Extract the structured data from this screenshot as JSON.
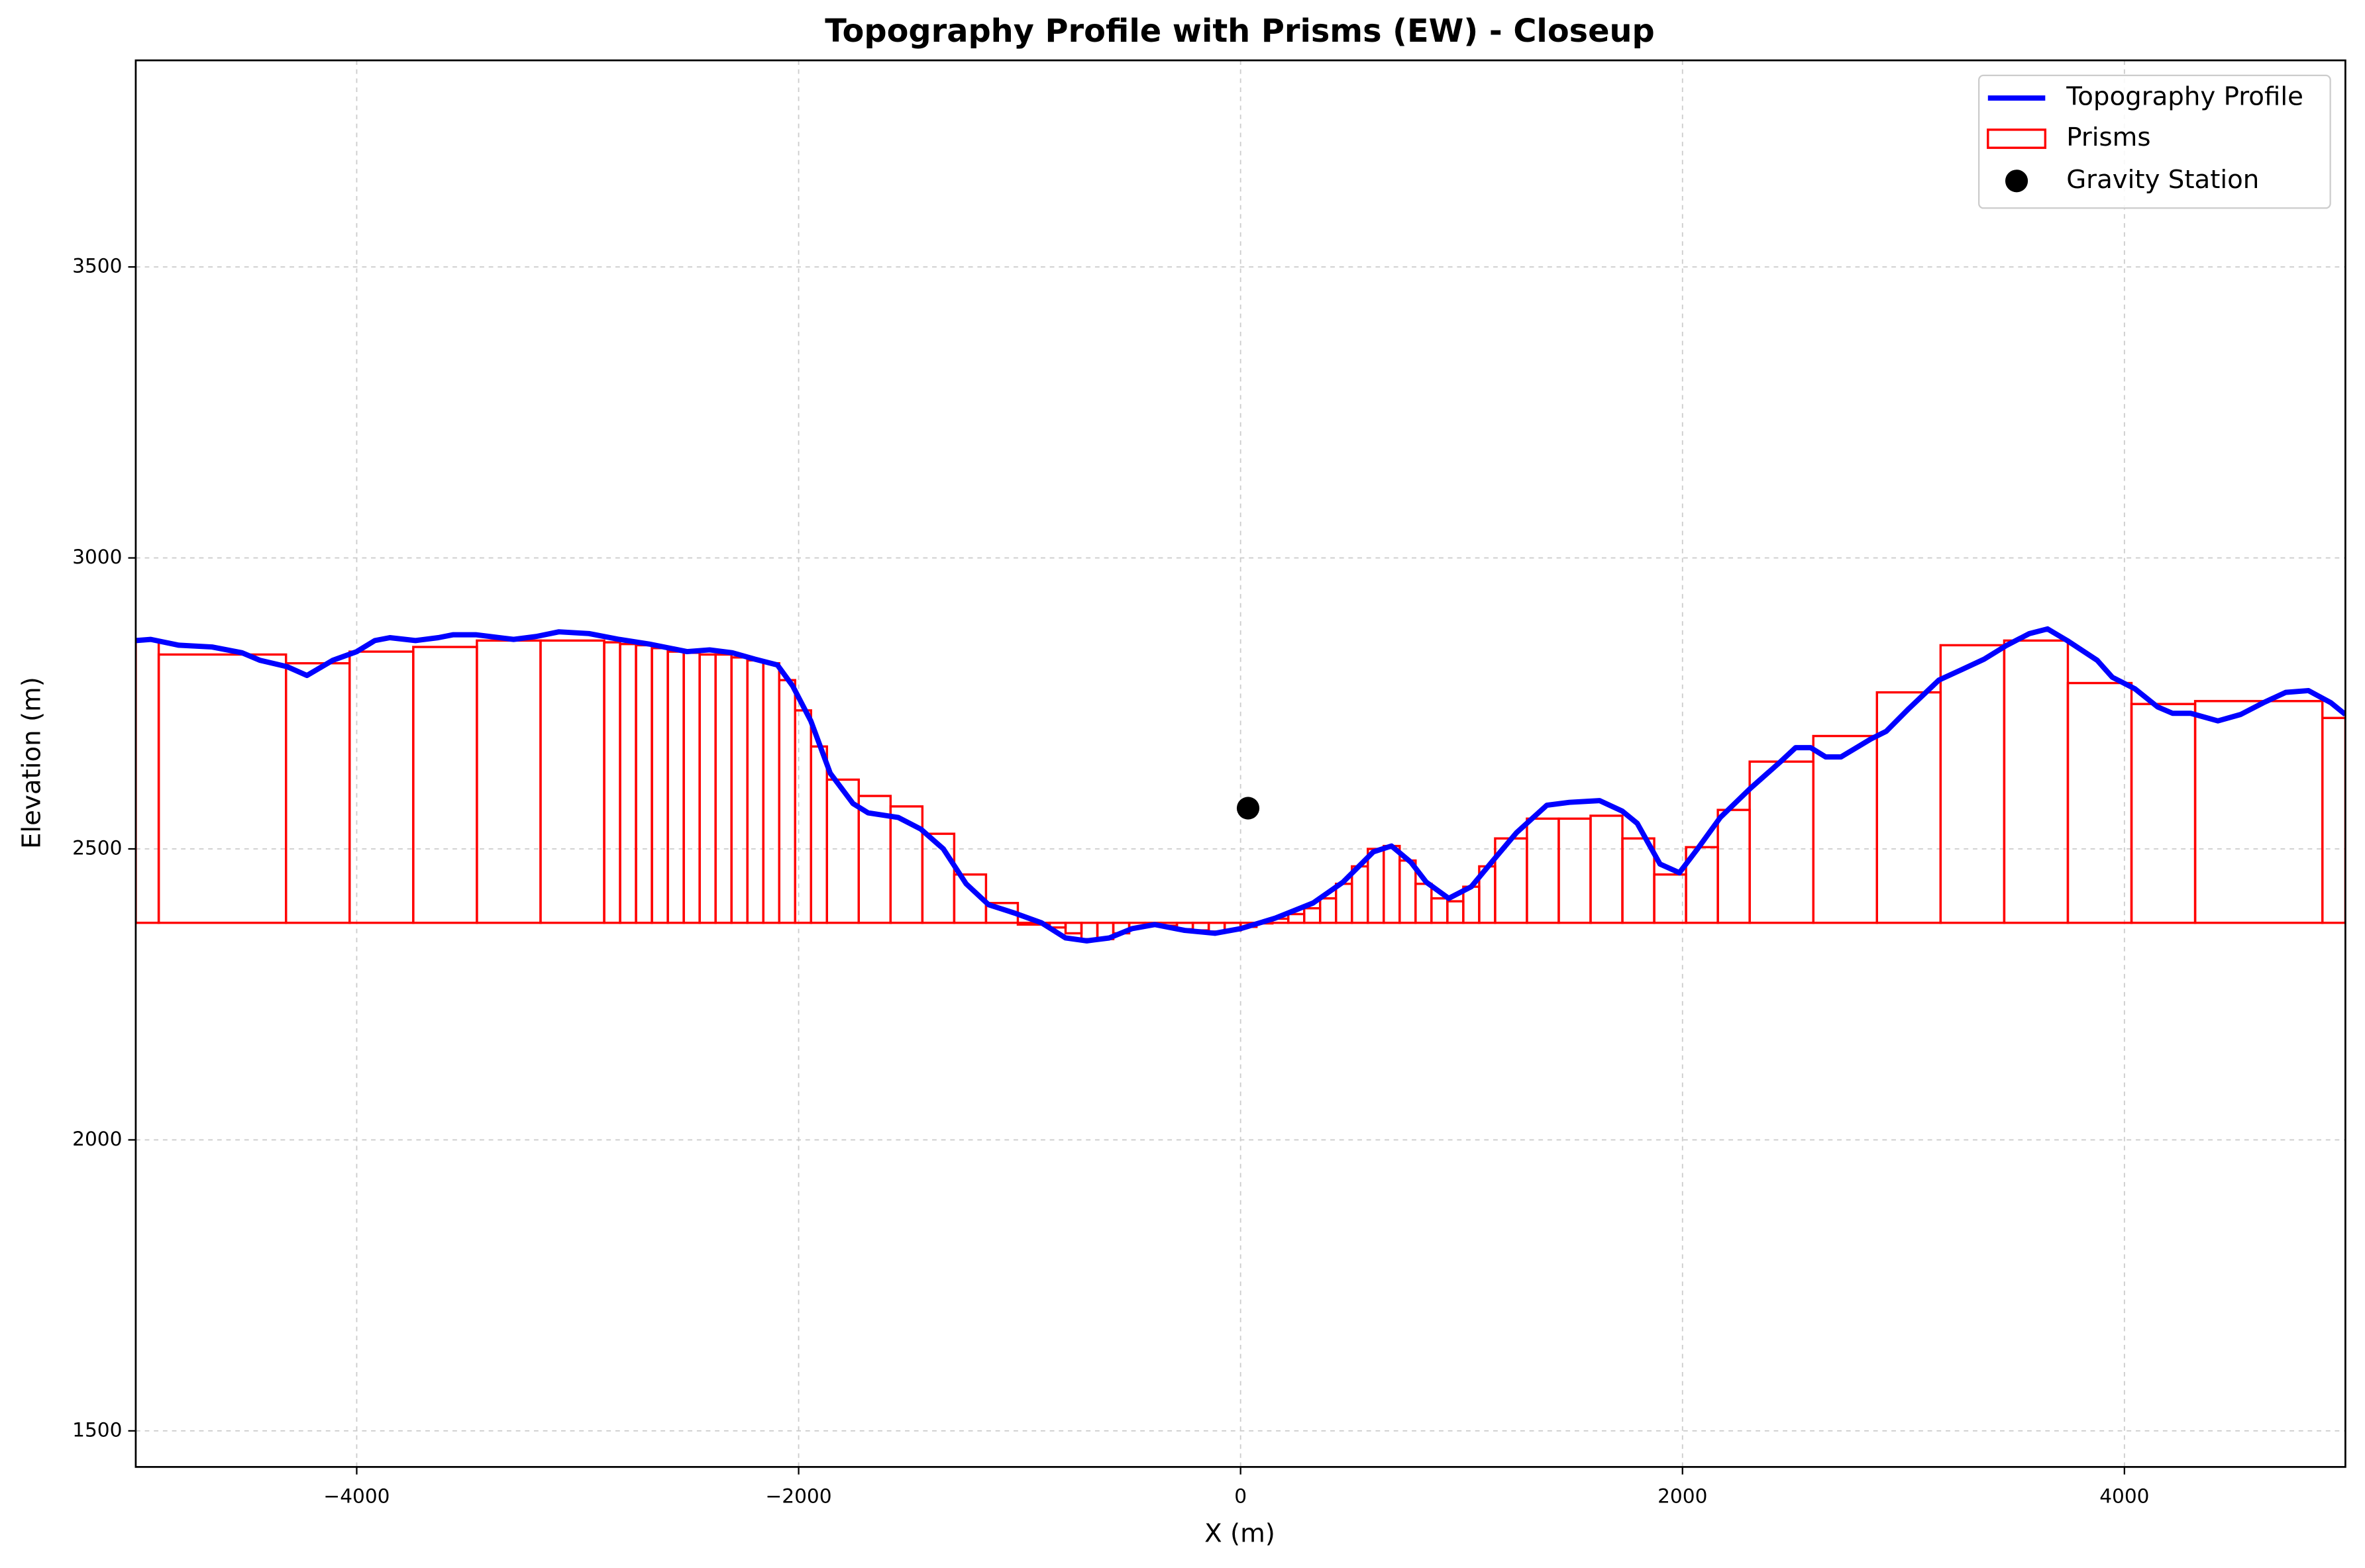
{
  "chart_data": {
    "type": "line",
    "title": "Topography Profile with Prisms (EW) - Closeup",
    "xlabel": "X (m)",
    "ylabel": "Elevation (m)",
    "xlim": [
      -5000,
      5000
    ],
    "ylim": [
      1438,
      3855
    ],
    "xticks": [
      {
        "value": -4000,
        "label": "−4000"
      },
      {
        "value": -2000,
        "label": "−2000"
      },
      0,
      2000,
      4000
    ],
    "yticks": [
      1500,
      2000,
      2500,
      3000,
      3500
    ],
    "grid": true,
    "legend": "upper right",
    "series": [
      {
        "name": "Topography Profile",
        "color": "#0000ff",
        "x": [
          -5000,
          -4932,
          -4805,
          -4655,
          -4519,
          -4437,
          -4314,
          -4225,
          -4109,
          -4000,
          -3918,
          -3850,
          -3734,
          -3631,
          -3563,
          -3461,
          -3290,
          -3188,
          -3085,
          -2949,
          -2812,
          -2676,
          -2505,
          -2403,
          -2300,
          -2198,
          -2096,
          -2027,
          -1945,
          -1857,
          -1754,
          -1686,
          -1549,
          -1447,
          -1345,
          -1242,
          -1140,
          -1017,
          -901,
          -792,
          -696,
          -594,
          -491,
          -389,
          -253,
          -116,
          0,
          157,
          328,
          464,
          601,
          683,
          771,
          840,
          942,
          1044,
          1147,
          1249,
          1386,
          1488,
          1625,
          1727,
          1795,
          1898,
          1986,
          2068,
          2171,
          2307,
          2444,
          2512,
          2580,
          2648,
          2717,
          2853,
          2922,
          3024,
          3160,
          3263,
          3365,
          3468,
          3570,
          3652,
          3741,
          3877,
          3945,
          4048,
          4150,
          4218,
          4300,
          4423,
          4526,
          4628,
          4730,
          4833,
          4935,
          5000
        ],
        "values": [
          2858,
          2860,
          2850,
          2847,
          2837,
          2824,
          2813,
          2798,
          2824,
          2839,
          2858,
          2863,
          2858,
          2863,
          2868,
          2868,
          2860,
          2865,
          2873,
          2870,
          2860,
          2852,
          2839,
          2842,
          2837,
          2826,
          2816,
          2780,
          2720,
          2630,
          2578,
          2562,
          2554,
          2534,
          2500,
          2440,
          2404,
          2389,
          2373,
          2347,
          2342,
          2347,
          2363,
          2370,
          2360,
          2355,
          2363,
          2381,
          2407,
          2443,
          2495,
          2505,
          2477,
          2443,
          2415,
          2435,
          2482,
          2528,
          2575,
          2580,
          2583,
          2565,
          2544,
          2474,
          2459,
          2500,
          2554,
          2604,
          2650,
          2674,
          2674,
          2658,
          2658,
          2689,
          2702,
          2741,
          2790,
          2808,
          2826,
          2850,
          2870,
          2878,
          2858,
          2824,
          2795,
          2775,
          2744,
          2733,
          2733,
          2720,
          2731,
          2751,
          2769,
          2772,
          2751,
          2731
        ]
      }
    ],
    "prisms": {
      "name": "Prisms",
      "color": "#ff0000",
      "base": 2373,
      "edges": [
        -5000,
        -4896,
        -4320,
        -4032,
        -3744,
        -3456,
        -3168,
        -2880,
        -2808,
        -2736,
        -2664,
        -2592,
        -2520,
        -2448,
        -2376,
        -2304,
        -2232,
        -2160,
        -2088,
        -2016,
        -1944,
        -1872,
        -1728,
        -1584,
        -1440,
        -1296,
        -1152,
        -1008,
        -864,
        -792,
        -720,
        -648,
        -576,
        -504,
        -432,
        -360,
        -288,
        -216,
        -144,
        -72,
        0,
        72,
        144,
        216,
        288,
        360,
        432,
        504,
        576,
        648,
        720,
        792,
        864,
        936,
        1008,
        1080,
        1152,
        1296,
        1440,
        1584,
        1728,
        1872,
        2016,
        2160,
        2304,
        2592,
        2880,
        3168,
        3456,
        3744,
        4032,
        4320,
        4896,
        5000
      ],
      "tops": [
        2858,
        2834,
        2819,
        2839,
        2847,
        2858,
        2858,
        2855,
        2852,
        2850,
        2845,
        2839,
        2837,
        2834,
        2834,
        2829,
        2824,
        2819,
        2790,
        2738,
        2676,
        2619,
        2591,
        2573,
        2526,
        2456,
        2407,
        2370,
        2365,
        2355,
        2345,
        2345,
        2355,
        2365,
        2370,
        2368,
        2362,
        2360,
        2358,
        2360,
        2366,
        2372,
        2380,
        2388,
        2398,
        2415,
        2440,
        2470,
        2500,
        2505,
        2480,
        2440,
        2415,
        2410,
        2435,
        2470,
        2518,
        2552,
        2552,
        2557,
        2518,
        2456,
        2503,
        2567,
        2650,
        2694,
        2769,
        2850,
        2858,
        2785,
        2749,
        2754,
        2725
      ]
    },
    "station": {
      "name": "Gravity Station",
      "color": "#000000",
      "x": 34,
      "y": 2570
    }
  }
}
